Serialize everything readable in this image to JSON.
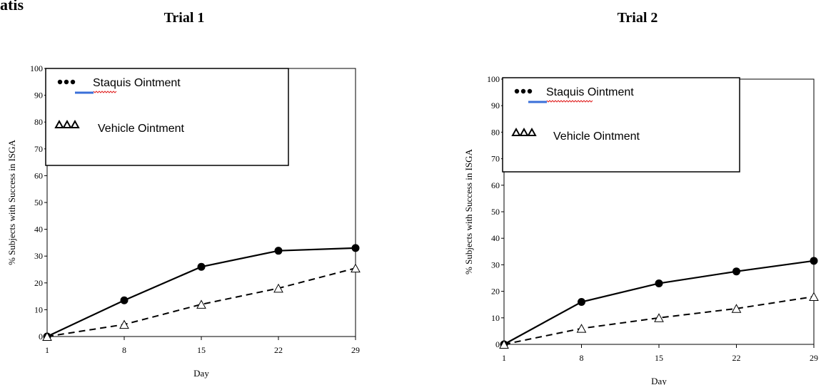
{
  "header": {
    "text": "atis"
  },
  "chart_data": [
    {
      "type": "line",
      "title": "Trial 1",
      "xlabel": "Day",
      "ylabel": "% Subjects with Success in ISGA",
      "x": [
        1,
        8,
        15,
        22,
        29
      ],
      "xticks": [
        "1",
        "8",
        "15",
        "22",
        "29"
      ],
      "ylim": [
        0,
        100
      ],
      "yticks": [
        0,
        10,
        20,
        30,
        40,
        50,
        60,
        70,
        80,
        90,
        100
      ],
      "grid": false,
      "legend_position": "top-left",
      "series": [
        {
          "name": "Staquis Ointment",
          "values": [
            0,
            13.5,
            26,
            32,
            33
          ],
          "marker": "filled-circle",
          "line": "solid",
          "color": "#000000"
        },
        {
          "name": "Vehicle Ointment",
          "values": [
            0,
            4.5,
            12,
            18,
            25.5
          ],
          "marker": "open-triangle",
          "line": "dashed",
          "color": "#000000"
        }
      ]
    },
    {
      "type": "line",
      "title": "Trial 2",
      "xlabel": "Day",
      "ylabel": "% Subjects with Success in ISGA",
      "x": [
        1,
        8,
        15,
        22,
        29
      ],
      "xticks": [
        "1",
        "8",
        "15",
        "22",
        "29"
      ],
      "ylim": [
        0,
        100
      ],
      "yticks": [
        0,
        10,
        20,
        30,
        40,
        50,
        60,
        70,
        80,
        90,
        100
      ],
      "grid": false,
      "legend_position": "top-left",
      "series": [
        {
          "name": "Staquis Ointment",
          "values": [
            0,
            16,
            23,
            27.5,
            31.5
          ],
          "marker": "filled-circle",
          "line": "solid",
          "color": "#000000"
        },
        {
          "name": "Vehicle Ointment",
          "values": [
            0,
            6,
            10,
            13.5,
            18
          ],
          "marker": "open-triangle",
          "line": "dashed",
          "color": "#000000"
        }
      ]
    }
  ]
}
